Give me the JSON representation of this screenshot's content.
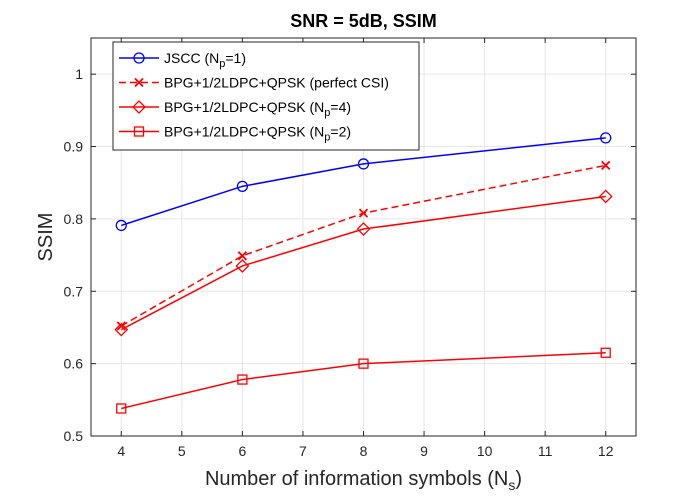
{
  "chart_data": {
    "type": "line",
    "title": "SNR = 5dB, SSIM",
    "xlabel": {
      "main": "Number of information symbols (N",
      "sub": "s",
      "tail": ")"
    },
    "ylabel": "SSIM",
    "xlim": [
      3.5,
      12.5
    ],
    "ylim": [
      0.5,
      1.05
    ],
    "xticks": [
      4,
      5,
      6,
      7,
      8,
      9,
      10,
      11,
      12
    ],
    "yticks": [
      0.5,
      0.6,
      0.7,
      0.8,
      0.9,
      1.0
    ],
    "ytick_labels": [
      "0.5",
      "0.6",
      "0.7",
      "0.8",
      "0.9",
      "1"
    ],
    "grid": true,
    "legend_position": "top-left",
    "series": [
      {
        "name": "JSCC (N_p=1)",
        "label_main": "JSCC (N",
        "label_sub": "p",
        "label_tail": "=1)",
        "color": "#0000ff",
        "dash": "solid",
        "marker": "circle",
        "x": [
          4,
          6,
          8,
          12
        ],
        "values": [
          0.791,
          0.845,
          0.876,
          0.912
        ]
      },
      {
        "name": "BPG+1/2LDPC+QPSK (perfect CSI)",
        "label_main": "BPG+1/2LDPC+QPSK (perfect CSI)",
        "label_sub": "",
        "label_tail": "",
        "color": "#ff0000",
        "dash": "dashed",
        "marker": "x",
        "x": [
          4,
          6,
          8,
          12
        ],
        "values": [
          0.652,
          0.749,
          0.808,
          0.874
        ]
      },
      {
        "name": "BPG+1/2LDPC+QPSK (N_p=4)",
        "label_main": "BPG+1/2LDPC+QPSK (N",
        "label_sub": "p",
        "label_tail": "=4)",
        "color": "#ff0000",
        "dash": "solid",
        "marker": "diamond",
        "x": [
          4,
          6,
          8,
          12
        ],
        "values": [
          0.647,
          0.735,
          0.786,
          0.831
        ]
      },
      {
        "name": "BPG+1/2LDPC+QPSK (N_p=2)",
        "label_main": "BPG+1/2LDPC+QPSK (N",
        "label_sub": "p",
        "label_tail": "=2)",
        "color": "#ff0000",
        "dash": "solid",
        "marker": "square",
        "x": [
          4,
          6,
          8,
          12
        ],
        "values": [
          0.538,
          0.578,
          0.6,
          0.615
        ]
      }
    ]
  }
}
